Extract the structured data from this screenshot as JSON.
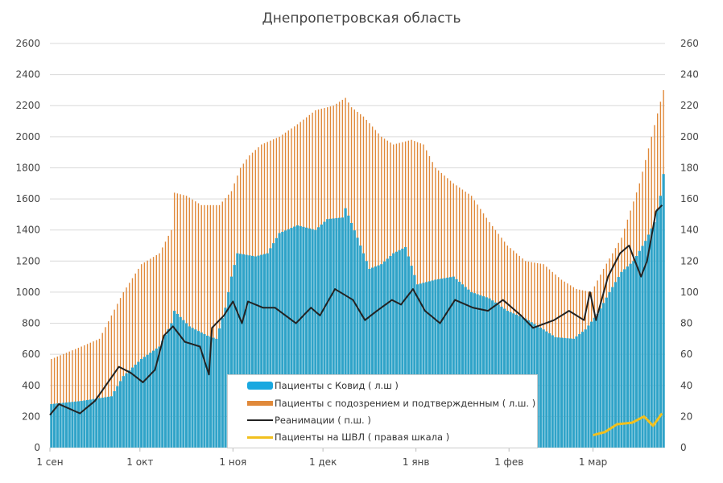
{
  "chart_data": {
    "type": "bar+line",
    "title": "Днепропетровская область",
    "x_unit": "days since 1 сен",
    "x_ticks": [
      {
        "day": 0,
        "label": "1 сен"
      },
      {
        "day": 30,
        "label": "1 окт"
      },
      {
        "day": 61,
        "label": "1 ноя"
      },
      {
        "day": 91,
        "label": "1 дек"
      },
      {
        "day": 122,
        "label": "1 янв"
      },
      {
        "day": 153,
        "label": "1 фев"
      },
      {
        "day": 181,
        "label": "1 мар"
      }
    ],
    "x_range": [
      0,
      205
    ],
    "y_left": {
      "range": [
        0,
        2600
      ],
      "ticks": [
        0,
        200,
        400,
        600,
        800,
        1000,
        1200,
        1400,
        1600,
        1800,
        2000,
        2200,
        2400,
        2600
      ]
    },
    "y_right": {
      "range": [
        0,
        260
      ],
      "ticks": [
        0,
        20,
        40,
        60,
        80,
        100,
        120,
        140,
        160,
        180,
        200,
        220,
        240,
        260
      ]
    },
    "grid": true,
    "legend_position": "bottom-center",
    "series": [
      {
        "name": "Пациенты с Ковид ( л.ш )",
        "type": "bar",
        "axis": "left",
        "color": "#2fa3c8",
        "points": [
          [
            0,
            280
          ],
          [
            10,
            300
          ],
          [
            20,
            330
          ],
          [
            24,
            460
          ],
          [
            30,
            570
          ],
          [
            36,
            650
          ],
          [
            40,
            800
          ],
          [
            41,
            880
          ],
          [
            46,
            780
          ],
          [
            52,
            720
          ],
          [
            55,
            700
          ],
          [
            58,
            900
          ],
          [
            60,
            1100
          ],
          [
            62,
            1250
          ],
          [
            68,
            1230
          ],
          [
            72,
            1250
          ],
          [
            76,
            1380
          ],
          [
            82,
            1430
          ],
          [
            88,
            1400
          ],
          [
            92,
            1470
          ],
          [
            97,
            1480
          ],
          [
            98,
            1540
          ],
          [
            102,
            1350
          ],
          [
            106,
            1150
          ],
          [
            110,
            1180
          ],
          [
            114,
            1250
          ],
          [
            118,
            1290
          ],
          [
            122,
            1050
          ],
          [
            128,
            1080
          ],
          [
            134,
            1100
          ],
          [
            140,
            1000
          ],
          [
            146,
            960
          ],
          [
            152,
            880
          ],
          [
            158,
            830
          ],
          [
            164,
            760
          ],
          [
            168,
            710
          ],
          [
            174,
            700
          ],
          [
            178,
            760
          ],
          [
            182,
            860
          ],
          [
            186,
            1000
          ],
          [
            190,
            1130
          ],
          [
            194,
            1200
          ],
          [
            198,
            1330
          ],
          [
            201,
            1450
          ],
          [
            203,
            1620
          ],
          [
            205,
            1900
          ]
        ]
      },
      {
        "name": "Пациенты с подозрением и подтвержденным ( л.ш. )",
        "type": "bar",
        "axis": "left",
        "color": "#e0893a",
        "points": [
          [
            0,
            570
          ],
          [
            10,
            650
          ],
          [
            16,
            700
          ],
          [
            20,
            850
          ],
          [
            24,
            1000
          ],
          [
            30,
            1180
          ],
          [
            36,
            1250
          ],
          [
            40,
            1400
          ],
          [
            41,
            1640
          ],
          [
            45,
            1620
          ],
          [
            50,
            1560
          ],
          [
            56,
            1560
          ],
          [
            60,
            1650
          ],
          [
            63,
            1800
          ],
          [
            66,
            1880
          ],
          [
            70,
            1950
          ],
          [
            76,
            2000
          ],
          [
            82,
            2080
          ],
          [
            88,
            2170
          ],
          [
            94,
            2200
          ],
          [
            98,
            2250
          ],
          [
            100,
            2190
          ],
          [
            104,
            2130
          ],
          [
            110,
            2000
          ],
          [
            114,
            1950
          ],
          [
            120,
            1980
          ],
          [
            124,
            1950
          ],
          [
            128,
            1800
          ],
          [
            134,
            1700
          ],
          [
            140,
            1620
          ],
          [
            146,
            1450
          ],
          [
            152,
            1300
          ],
          [
            158,
            1200
          ],
          [
            164,
            1180
          ],
          [
            170,
            1080
          ],
          [
            175,
            1020
          ],
          [
            180,
            1000
          ],
          [
            184,
            1150
          ],
          [
            190,
            1350
          ],
          [
            196,
            1700
          ],
          [
            200,
            2000
          ],
          [
            204,
            2300
          ],
          [
            206,
            2550
          ]
        ]
      },
      {
        "name": "Реанимации ( п.ш. )",
        "type": "line",
        "axis": "right",
        "color": "#222222",
        "points": [
          [
            0,
            21
          ],
          [
            3,
            28
          ],
          [
            10,
            22
          ],
          [
            15,
            30
          ],
          [
            23,
            52
          ],
          [
            27,
            48
          ],
          [
            31,
            42
          ],
          [
            35,
            50
          ],
          [
            38,
            72
          ],
          [
            41,
            78
          ],
          [
            45,
            68
          ],
          [
            50,
            65
          ],
          [
            53,
            47
          ],
          [
            54,
            77
          ],
          [
            58,
            85
          ],
          [
            61,
            94
          ],
          [
            64,
            80
          ],
          [
            66,
            94
          ],
          [
            71,
            90
          ],
          [
            75,
            90
          ],
          [
            82,
            80
          ],
          [
            87,
            90
          ],
          [
            90,
            85
          ],
          [
            95,
            102
          ],
          [
            101,
            95
          ],
          [
            105,
            82
          ],
          [
            109,
            88
          ],
          [
            114,
            95
          ],
          [
            117,
            92
          ],
          [
            121,
            102
          ],
          [
            125,
            88
          ],
          [
            130,
            80
          ],
          [
            135,
            95
          ],
          [
            141,
            90
          ],
          [
            146,
            88
          ],
          [
            151,
            95
          ],
          [
            157,
            85
          ],
          [
            161,
            77
          ],
          [
            168,
            82
          ],
          [
            173,
            88
          ],
          [
            178,
            82
          ],
          [
            180,
            100
          ],
          [
            182,
            82
          ],
          [
            186,
            110
          ],
          [
            190,
            125
          ],
          [
            193,
            130
          ],
          [
            197,
            110
          ],
          [
            199,
            120
          ],
          [
            202,
            152
          ],
          [
            204,
            156
          ]
        ]
      },
      {
        "name": "Пациенты на ШВЛ ( правая шкала )",
        "type": "line",
        "axis": "right",
        "color": "#f2c01e",
        "points": [
          [
            181,
            8
          ],
          [
            185,
            10
          ],
          [
            189,
            15
          ],
          [
            194,
            16
          ],
          [
            198,
            20
          ],
          [
            201,
            14
          ],
          [
            204,
            22
          ]
        ]
      }
    ]
  }
}
